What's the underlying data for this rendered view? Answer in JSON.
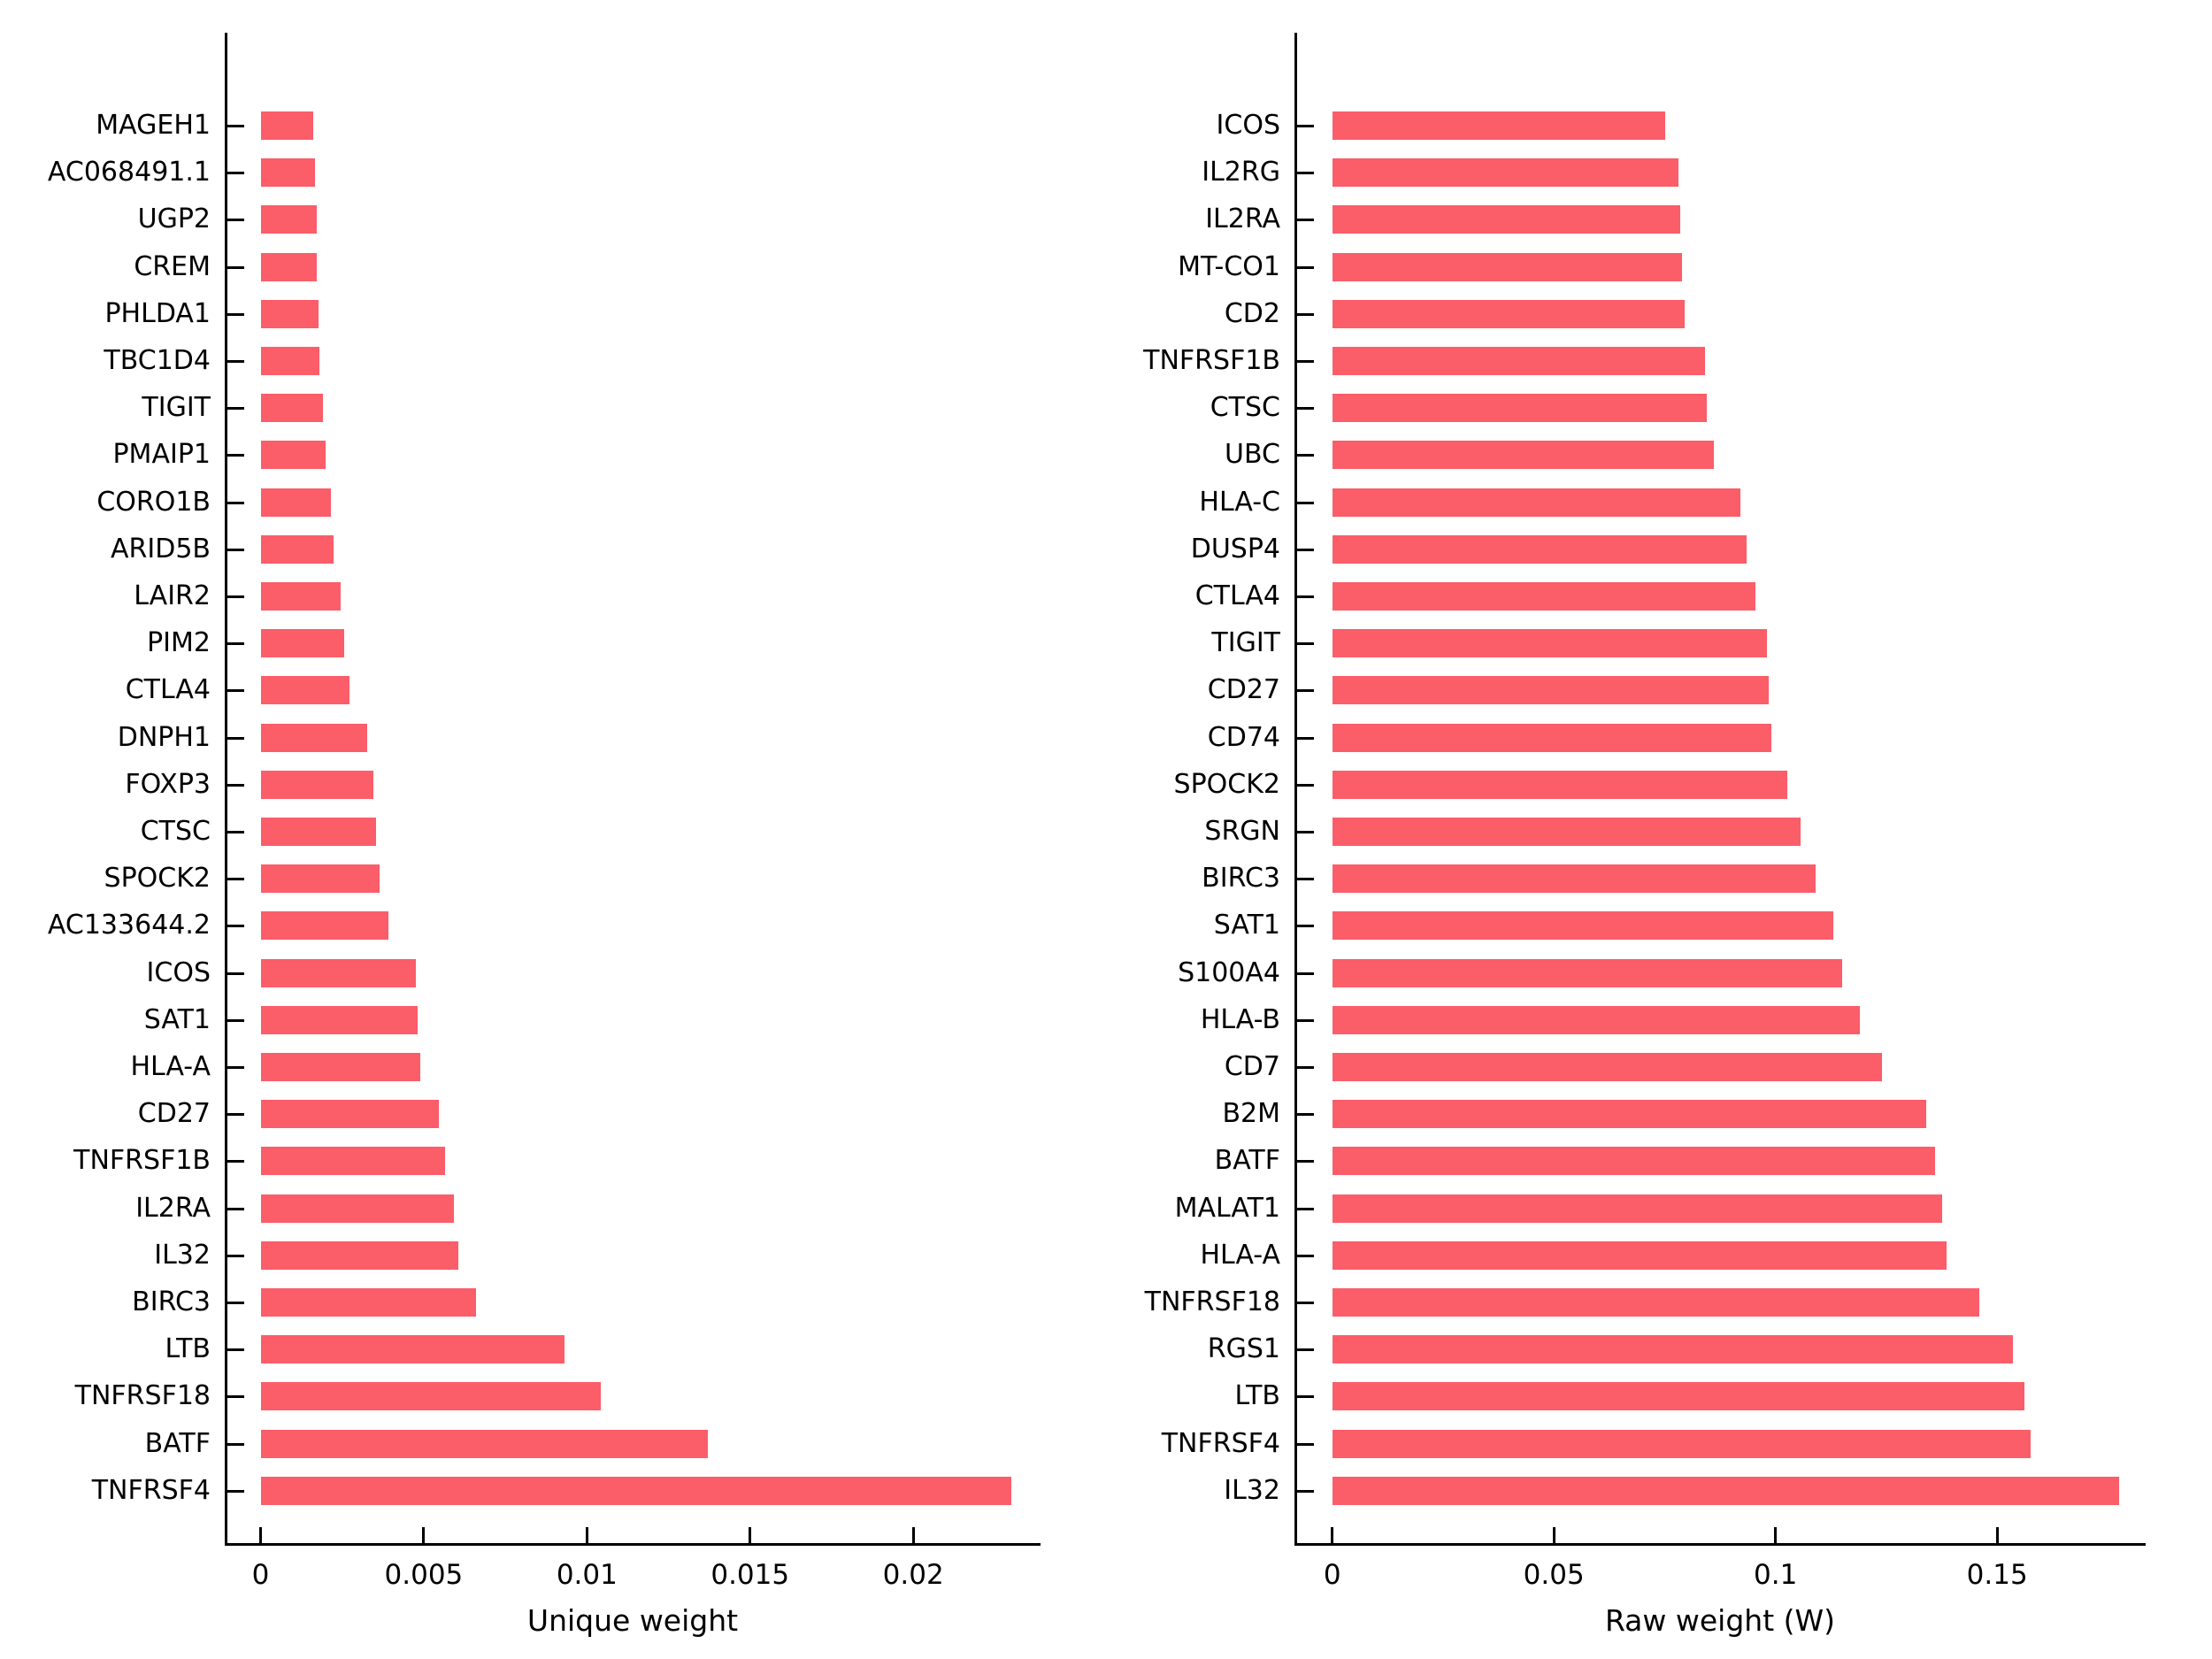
{
  "figure": {
    "background": "#ffffff",
    "bar_color": "#FB5D69",
    "axis_color": "#000000"
  },
  "chart_data": [
    {
      "type": "bar",
      "orientation": "horizontal",
      "title": "",
      "xlabel": "Unique weight",
      "ylabel": "",
      "xlim": [
        0,
        0.0239
      ],
      "grid": false,
      "legend": null,
      "xticks": [
        0,
        0.005,
        0.01,
        0.015,
        0.02
      ],
      "xtick_labels": [
        "0",
        "0.005",
        "0.01",
        "0.015",
        "0.02"
      ],
      "categories": [
        "MAGEH1",
        "AC068491.1",
        "UGP2",
        "CREM",
        "PHLDA1",
        "TBC1D4",
        "TIGIT",
        "PMAIP1",
        "CORO1B",
        "ARID5B",
        "LAIR2",
        "PIM2",
        "CTLA4",
        "DNPH1",
        "FOXP3",
        "CTSC",
        "SPOCK2",
        "AC133644.2",
        "ICOS",
        "SAT1",
        "HLA-A",
        "CD27",
        "TNFRSF1B",
        "IL2RA",
        "IL32",
        "BIRC3",
        "LTB",
        "TNFRSF18",
        "BATF",
        "TNFRSF4"
      ],
      "values": [
        0.0016,
        0.00165,
        0.0017,
        0.00172,
        0.00175,
        0.00178,
        0.0019,
        0.00198,
        0.00215,
        0.00222,
        0.00245,
        0.00255,
        0.00272,
        0.00325,
        0.00345,
        0.00352,
        0.00362,
        0.0039,
        0.00475,
        0.0048,
        0.00488,
        0.00545,
        0.00565,
        0.0059,
        0.00605,
        0.0066,
        0.0093,
        0.0104,
        0.0137,
        0.023
      ]
    },
    {
      "type": "bar",
      "orientation": "horizontal",
      "title": "",
      "xlabel": "Raw weight (W)",
      "ylabel": "",
      "xlim": [
        0,
        0.1835
      ],
      "grid": false,
      "legend": null,
      "xticks": [
        0,
        0.05,
        0.1,
        0.15
      ],
      "xtick_labels": [
        "0",
        "0.05",
        "0.1",
        "0.15"
      ],
      "categories": [
        "ICOS",
        "IL2RG",
        "IL2RA",
        "MT-CO1",
        "CD2",
        "TNFRSF1B",
        "CTSC",
        "UBC",
        "HLA-C",
        "DUSP4",
        "CTLA4",
        "TIGIT",
        "CD27",
        "CD74",
        "SPOCK2",
        "SRGN",
        "BIRC3",
        "SAT1",
        "S100A4",
        "HLA-B",
        "CD7",
        "B2M",
        "BATF",
        "MALAT1",
        "HLA-A",
        "TNFRSF18",
        "RGS1",
        "LTB",
        "TNFRSF4",
        "IL32"
      ],
      "values": [
        0.075,
        0.078,
        0.0785,
        0.0788,
        0.0795,
        0.084,
        0.0845,
        0.086,
        0.092,
        0.0935,
        0.0955,
        0.098,
        0.0985,
        0.099,
        0.1025,
        0.1055,
        0.109,
        0.113,
        0.115,
        0.119,
        0.124,
        0.134,
        0.136,
        0.1375,
        0.1385,
        0.146,
        0.1535,
        0.156,
        0.1575,
        0.1775
      ]
    }
  ]
}
